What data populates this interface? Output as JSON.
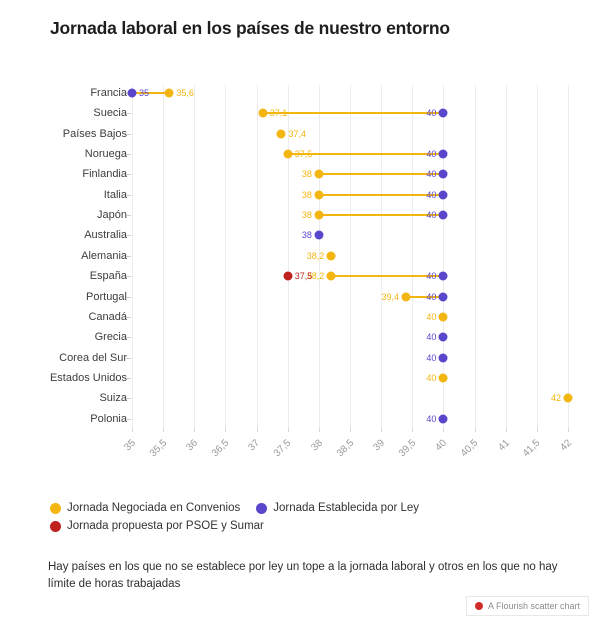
{
  "title": "Jornada laboral en los países de nuestro entorno",
  "colors": {
    "convenios": "#F3B50F",
    "ley": "#5847CB",
    "propuesta": "#BE211E",
    "grid": "#ececec",
    "axis_tick": "#d6d6d6",
    "tick_label_text": "#9a9a9a",
    "country_label_text": "#3d3d3d",
    "title_text": "#1e1e1e",
    "body_text": "#2e2e2e",
    "attribution_dot": "#D02B27",
    "attribution_text": "#8c8c8c"
  },
  "chart_data": {
    "type": "scatter",
    "title": "Jornada laboral en los países de nuestro entorno",
    "xlabel": "",
    "ylabel": "",
    "grid": true,
    "legend_position": "bottom",
    "x_axis": {
      "min": 35,
      "max": 42,
      "step": 0.5,
      "tick_labels": [
        "35",
        "35,5",
        "36",
        "36,5",
        "37",
        "37,5",
        "38",
        "38,5",
        "39",
        "39,5",
        "40",
        "40,5",
        "41",
        "41,5",
        "42"
      ]
    },
    "series": [
      {
        "key": "convenios",
        "name": "Jornada Negociada en Convenios"
      },
      {
        "key": "ley",
        "name": "Jornada Establecida por Ley"
      },
      {
        "key": "propuesta",
        "name": "Jornada propuesta por PSOE y Sumar"
      }
    ],
    "rows": [
      {
        "country": "Francia",
        "points": [
          {
            "series": "ley",
            "value": 35,
            "label": "35",
            "side": "right"
          },
          {
            "series": "convenios",
            "value": 35.6,
            "label": "35,6",
            "side": "right"
          }
        ],
        "line": [
          35,
          35.6
        ]
      },
      {
        "country": "Suecia",
        "points": [
          {
            "series": "convenios",
            "value": 37.1,
            "label": "37,1",
            "side": "right"
          },
          {
            "series": "ley",
            "value": 40,
            "label": "40",
            "side": "left"
          }
        ],
        "line": [
          37.1,
          40
        ]
      },
      {
        "country": "Países Bajos",
        "points": [
          {
            "series": "convenios",
            "value": 37.4,
            "label": "37,4",
            "side": "right"
          }
        ]
      },
      {
        "country": "Noruega",
        "points": [
          {
            "series": "convenios",
            "value": 37.5,
            "label": "37,5",
            "side": "right"
          },
          {
            "series": "ley",
            "value": 40,
            "label": "40",
            "side": "left"
          }
        ],
        "line": [
          37.5,
          40
        ]
      },
      {
        "country": "Finlandia",
        "points": [
          {
            "series": "convenios",
            "value": 38,
            "label": "38",
            "side": "left"
          },
          {
            "series": "ley",
            "value": 40,
            "label": "40",
            "side": "left"
          }
        ],
        "line": [
          38,
          40
        ]
      },
      {
        "country": "Italia",
        "points": [
          {
            "series": "convenios",
            "value": 38,
            "label": "38",
            "side": "left"
          },
          {
            "series": "ley",
            "value": 40,
            "label": "40",
            "side": "left"
          }
        ],
        "line": [
          38,
          40
        ]
      },
      {
        "country": "Japón",
        "points": [
          {
            "series": "convenios",
            "value": 38,
            "label": "38",
            "side": "left"
          },
          {
            "series": "ley",
            "value": 40,
            "label": "40",
            "side": "left"
          }
        ],
        "line": [
          38,
          40
        ]
      },
      {
        "country": "Australia",
        "points": [
          {
            "series": "ley",
            "value": 38,
            "label": "38",
            "side": "left"
          }
        ]
      },
      {
        "country": "Alemania",
        "points": [
          {
            "series": "convenios",
            "value": 38.2,
            "label": "38,2",
            "side": "left"
          }
        ]
      },
      {
        "country": "España",
        "points": [
          {
            "series": "convenios",
            "value": 38.2,
            "label": "38,2",
            "side": "left"
          },
          {
            "series": "propuesta",
            "value": 37.5,
            "label": "37,5",
            "side": "right"
          },
          {
            "series": "ley",
            "value": 40,
            "label": "40",
            "side": "left"
          }
        ],
        "line": [
          38.2,
          40
        ]
      },
      {
        "country": "Portugal",
        "points": [
          {
            "series": "convenios",
            "value": 39.4,
            "label": "39,4",
            "side": "left"
          },
          {
            "series": "ley",
            "value": 40,
            "label": "40",
            "side": "left"
          }
        ],
        "line": [
          39.4,
          40
        ]
      },
      {
        "country": "Canadá",
        "points": [
          {
            "series": "convenios",
            "value": 40,
            "label": "40",
            "side": "left"
          }
        ]
      },
      {
        "country": "Grecia",
        "points": [
          {
            "series": "ley",
            "value": 40,
            "label": "40",
            "side": "left"
          }
        ]
      },
      {
        "country": "Corea del Sur",
        "points": [
          {
            "series": "ley",
            "value": 40,
            "label": "40",
            "side": "left"
          }
        ]
      },
      {
        "country": "Estados Unidos",
        "points": [
          {
            "series": "convenios",
            "value": 40,
            "label": "40",
            "side": "left"
          }
        ]
      },
      {
        "country": "Suiza",
        "points": [
          {
            "series": "convenios",
            "value": 42,
            "label": "42",
            "side": "left"
          }
        ]
      },
      {
        "country": "Polonia",
        "points": [
          {
            "series": "ley",
            "value": 40,
            "label": "40",
            "side": "left"
          }
        ]
      }
    ]
  },
  "legend": {
    "items": [
      {
        "label": "Jornada Negociada en Convenios",
        "key": "convenios"
      },
      {
        "label": "Jornada Establecida por Ley",
        "key": "ley"
      },
      {
        "label": "Jornada propuesta por PSOE y Sumar",
        "key": "propuesta"
      }
    ]
  },
  "footnote": "Hay países en los que no se establece por ley un tope a la jornada laboral y otros en los que no hay límite de horas trabajadas",
  "attribution": "A Flourish scatter chart"
}
